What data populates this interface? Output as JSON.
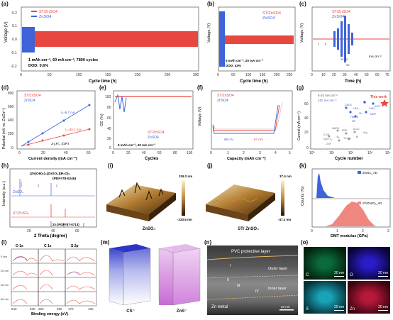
{
  "panels": {
    "a": {
      "label": "(a)",
      "ylabel": "Voltage (V)",
      "xlabel": "Cycle time (h)",
      "legend": [
        "ST/ZnSO4",
        "ZnSO4"
      ],
      "note1": "1 mAh cm⁻², 60 mA cm⁻², 7800 cycles",
      "note2": "DOD: 0.6%",
      "xticks": [
        "0",
        "50",
        "100",
        "150",
        "200",
        "250",
        "300"
      ],
      "yticks": [
        "0.2",
        "0.1",
        "0.0",
        "-0.1",
        "-0.2"
      ]
    },
    "b": {
      "label": "(b)",
      "ylabel": "Voltage (V)",
      "xlabel": "Cycle time (h)",
      "legend": [
        "ST/ZnSO4",
        "ZnSO4"
      ],
      "note1": "5 mAh cm⁻², 20 mA cm⁻²",
      "note2": "DOD: 43%",
      "xticks": [
        "0",
        "50",
        "100",
        "150",
        "200",
        "250"
      ],
      "yticks": [
        "0.4",
        "0.2",
        "0.0",
        "-0.2",
        "-0.4"
      ]
    },
    "c": {
      "label": "(c)",
      "ylabel": "Voltage (V)",
      "xlabel": "Time (h)",
      "legend": [
        "ST/ZnSO4",
        "ZnSO4"
      ],
      "xticks": [
        "0",
        "10",
        "20",
        "30",
        "40",
        "50",
        "60",
        "70"
      ],
      "yticks": [
        "0.2",
        "0.1",
        "0.0",
        "-0.1",
        "-0.2"
      ],
      "unit": "mA cm⁻²",
      "steps": [
        "1",
        "5",
        "10",
        "20",
        "30",
        "40",
        "50",
        "60",
        "70",
        "80",
        "90"
      ]
    },
    "d": {
      "label": "(d)",
      "ylabel": "Potential (mV vs. Zn/Zn²⁺)",
      "xlabel": "Current density (mA cm⁻²)",
      "legend": [
        "ST/ZnSO4",
        "ZnSO4"
      ],
      "fit1": "I₀=8.7 mA",
      "fit2": "I₀=30.1 mA",
      "eq": "Jη₀F(...)/2RT",
      "xticks": [
        "0",
        "20",
        "40",
        "60"
      ],
      "yticks": [
        "0",
        "200",
        "400",
        "600",
        "800"
      ]
    },
    "e": {
      "label": "(e)",
      "ylabel": "CE (%)",
      "xlabel": "Cycles",
      "legend": [
        "ST/ZnSO4",
        "ZnSO4"
      ],
      "note": "5 mAh cm⁻², 20 mA cm⁻²",
      "xticks": [
        "0",
        "20",
        "40",
        "60",
        "80",
        "100"
      ],
      "yticks": [
        "100",
        "80",
        "60",
        "40",
        "20",
        "0"
      ]
    },
    "f": {
      "label": "(f)",
      "ylabel": "Voltage (V)",
      "xlabel": "Capacity (mAh cm⁻²)",
      "legend": [
        "ST/ZnSO4",
        "ZnSO4"
      ],
      "a1": "98 mV",
      "a2": "87 mV",
      "xticks": [
        "0",
        "1",
        "2",
        "3",
        "4",
        "5"
      ],
      "yticks": [
        "0.4",
        "0.2",
        "0.0",
        "-0.2",
        "-0.4"
      ]
    },
    "g": {
      "label": "(g)",
      "ylabel": "Current (mA cm⁻²)",
      "xlabel": "Cycle number",
      "legend": [
        "5-10 mA cm⁻²",
        "≥10 mA cm⁻²"
      ],
      "thiswork": "This work",
      "points": [
        "CBCE",
        "LBO₂",
        "HBP-B",
        "Sb",
        "MP",
        "CMC₂",
        "MMP",
        "ACN",
        "NADS",
        "PBG",
        "β-CD",
        "Arg",
        "Z-SS",
        "N(CF₃)₂",
        "TA",
        "TK-Na",
        "ZSF",
        "Bi"
      ],
      "xticks": [
        "10⁰",
        "10¹",
        "10²",
        "10³",
        "10⁴"
      ],
      "yticks": [
        "60",
        "40",
        "20",
        "0"
      ]
    },
    "h": {
      "label": "(h)",
      "ylabel": "Intensity (a.u.)",
      "xlabel": "2 Theta (degree)",
      "ref1": "(Zn(OH)₂)₃(ZnSO₄)(H₂O)₅",
      "ref1b": "(PDF#78-0246)",
      "s1": "ZnSO₄",
      "s2": "ST/ZnSO₄",
      "ref2": "Zn (PDF#87-0713)",
      "xticks": [
        "20",
        "40",
        "60"
      ]
    },
    "i": {
      "label": "(i)",
      "top": "319.2 nm",
      "bot": "-233.5 nm",
      "cap": "ZnSO₄"
    },
    "j": {
      "label": "(j)",
      "top": "37.4 nm",
      "bot": "-47.2 nm",
      "cap": "ST/ ZnSO₄"
    },
    "k": {
      "label": "(k)",
      "ylabel": "Counts (%)",
      "xlabel": "DMT modulus (GPa)",
      "legend": [
        "ZnSO₄_AD",
        "ST/ZnSO₄_AD"
      ],
      "xticks": [
        "0",
        "1",
        "2",
        "3"
      ]
    },
    "l": {
      "label": "(l)",
      "heads": [
        "O 1s",
        "C 1s",
        "S 2p"
      ],
      "depths": [
        "0 nm",
        "20 nm",
        "40 nm",
        "60 nm"
      ],
      "xlabel": "Binding energy (eV)",
      "xticks": [
        "540",
        "530",
        "290",
        "280",
        "170",
        "160"
      ]
    },
    "m": {
      "label": "(m)",
      "cap1": "CS⁻",
      "cap2": "ZnS⁻"
    },
    "n": {
      "label": "(n)",
      "top": "PVC protective layer",
      "outer": "Outer layer",
      "inner": "Inner layer",
      "base": "Zn metal",
      "scale": "20 nm",
      "marks": [
        "I",
        "II",
        "III",
        "IV"
      ]
    },
    "o": {
      "label": "(o)",
      "tiles": [
        {
          "el": "C",
          "scale": "20 nm"
        },
        {
          "el": "O",
          "scale": "20 nm"
        },
        {
          "el": "S",
          "scale": "20 nm"
        },
        {
          "el": "Zn",
          "scale": "20 nm"
        }
      ]
    }
  },
  "colors": {
    "st": "#e8473f",
    "zn": "#3f63d8"
  }
}
